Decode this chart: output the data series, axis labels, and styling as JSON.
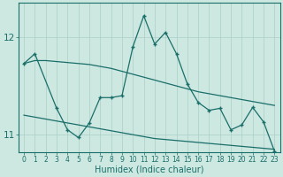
{
  "xlabel": "Humidex (Indice chaleur)",
  "background_color": "#cce8e0",
  "grid_color": "#aacfc8",
  "line_color": "#1a6e6a",
  "xlim": [
    -0.5,
    23.5
  ],
  "ylim": [
    10.82,
    12.35
  ],
  "yticks": [
    11,
    12
  ],
  "xticks": [
    0,
    1,
    2,
    3,
    4,
    5,
    6,
    7,
    8,
    9,
    10,
    11,
    12,
    13,
    14,
    15,
    16,
    17,
    18,
    19,
    20,
    21,
    22,
    23
  ],
  "series": {
    "line1_x": [
      0,
      1,
      2,
      3,
      4,
      5,
      6,
      7,
      8,
      9,
      10,
      11,
      12,
      13,
      14,
      15,
      16,
      17,
      18,
      19,
      20,
      21,
      22,
      23
    ],
    "line1_y": [
      11.73,
      11.76,
      11.76,
      11.75,
      11.74,
      11.73,
      11.72,
      11.7,
      11.68,
      11.65,
      11.62,
      11.59,
      11.56,
      11.53,
      11.5,
      11.47,
      11.44,
      11.42,
      11.4,
      11.38,
      11.36,
      11.34,
      11.32,
      11.3
    ],
    "line2_x": [
      0,
      1,
      2,
      3,
      4,
      5,
      6,
      7,
      8,
      9,
      10,
      11,
      12,
      13,
      14,
      15,
      16,
      17,
      18,
      19,
      20,
      21,
      22,
      23
    ],
    "line2_y": [
      11.2,
      11.18,
      11.16,
      11.14,
      11.12,
      11.1,
      11.08,
      11.06,
      11.04,
      11.02,
      11.0,
      10.98,
      10.96,
      10.95,
      10.94,
      10.93,
      10.92,
      10.91,
      10.9,
      10.89,
      10.88,
      10.87,
      10.86,
      10.85
    ],
    "line3_x": [
      0,
      1,
      3,
      4,
      5,
      6,
      7,
      8,
      9,
      10,
      11,
      12,
      13,
      14,
      15,
      16,
      17,
      18,
      19,
      20,
      21,
      22,
      23
    ],
    "line3_y": [
      11.73,
      11.83,
      11.27,
      11.05,
      10.97,
      11.12,
      11.38,
      11.38,
      11.4,
      11.9,
      12.22,
      11.93,
      12.05,
      11.83,
      11.52,
      11.33,
      11.25,
      11.27,
      11.05,
      11.1,
      11.28,
      11.13,
      10.83
    ]
  }
}
